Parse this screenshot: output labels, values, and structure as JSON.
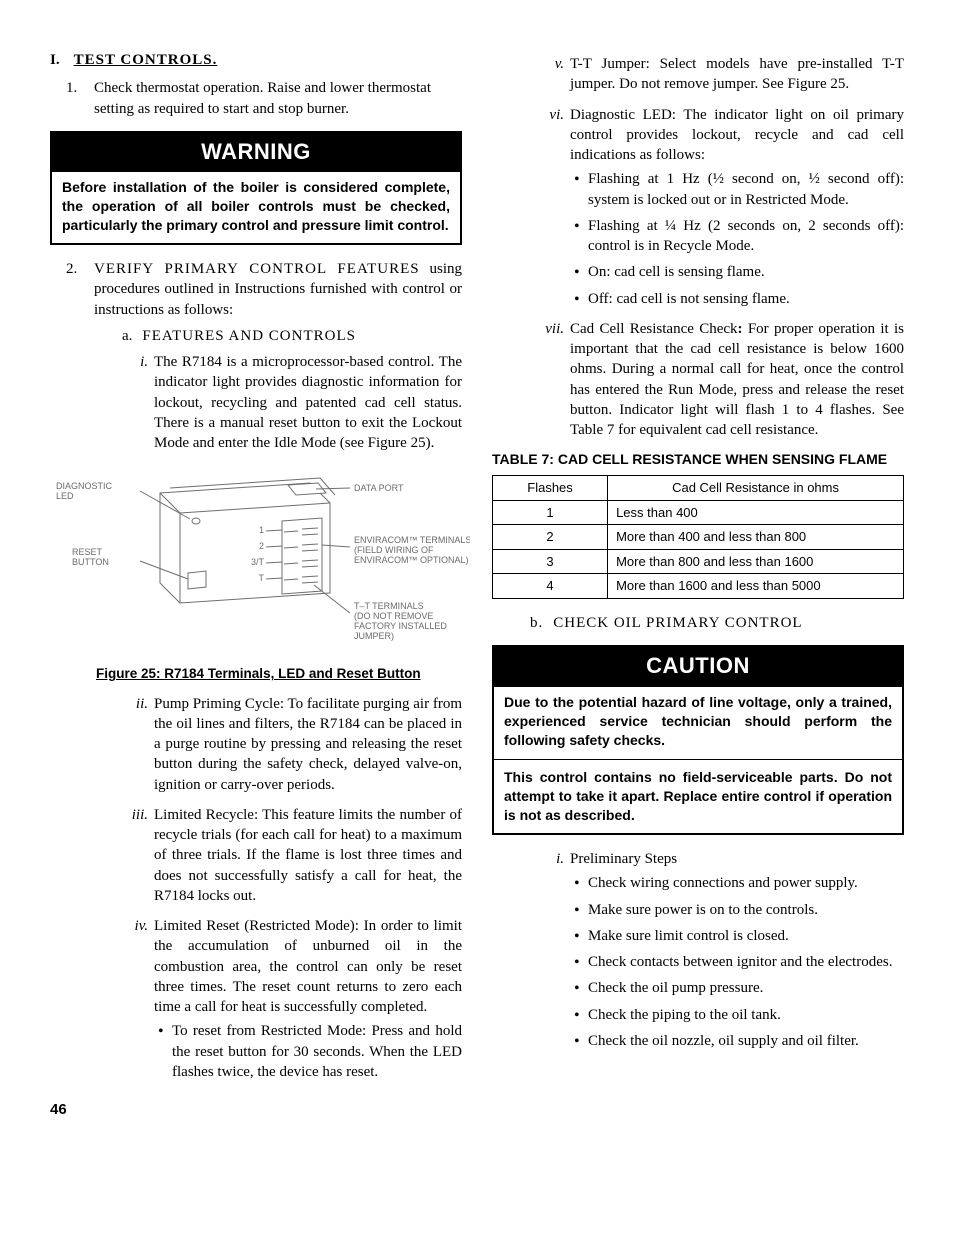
{
  "section": {
    "letter": "I.",
    "title": "TEST  CONTROLS."
  },
  "list1": [
    {
      "num": "1",
      "text": "Check thermostat operation. Raise and lower thermostat setting as required to start and stop burner."
    }
  ],
  "warning": {
    "header": "WARNING",
    "body": "Before installation of the boiler is considered complete, the operation of all boiler controls must be checked, particularly the primary control and pressure limit control."
  },
  "list2_intro": {
    "num": "2",
    "lead": "VERIFY  PRIMARY  CONTROL  FEATURES",
    "rest": " using procedures outlined in Instructions furnished with control or instructions as follows:"
  },
  "sub_a": {
    "label": "a.",
    "title": "FEATURES  AND  CONTROLS"
  },
  "roman_left": [
    {
      "rn": "i",
      "text": "The R7184 is a microprocessor-based control.  The indicator light provides diagnostic information for lockout, recycling and patented cad cell status.   There is a manual reset button to exit the Lockout Mode and enter the Idle Mode (see Figure 25)."
    }
  ],
  "figure": {
    "caption": "Figure 25:  R7184 Terminals, LED and Reset Button",
    "labels": {
      "diag": "DIAGNOSTIC\nLED",
      "reset": "RESET\nBUTTON",
      "data": "DATA  PORT",
      "env": "ENVIRACOM™ TERMINALS\n(FIELD WIRING OF\nENVIRACOM™ OPTIONAL)",
      "tt": "T–T  TERMINALS\n(DO NOT REMOVE\nFACTORY INSTALLED\nJUMPER)",
      "n1": "1",
      "n2": "2",
      "n3": "3/T",
      "nT": "T"
    },
    "stroke": "#6e6e6e",
    "text_color": "#6b6b6b"
  },
  "roman_left2": [
    {
      "rn": "ii",
      "text": "Pump Priming Cycle:  To facilitate purging air from the oil lines and filters, the R7184 can be placed in a purge routine by pressing and releasing the reset button during the safety check, delayed valve-on, ignition or carry-over periods."
    },
    {
      "rn": "iii",
      "text": "Limited Recycle:  This feature limits the number of recycle trials (for each call for heat) to a maximum of three trials.  If the flame is lost three times and does not successfully satisfy a call for heat, the R7184 locks out."
    },
    {
      "rn": "iv",
      "text": "Limited Reset (Restricted Mode):  In order to limit the accumulation of unburned oil in the combustion area, the control can only be reset three times.  The reset count returns to zero each time a call for heat is successfully completed.",
      "bullets": [
        "To reset from Restricted Mode:  Press and hold the reset button for 30 seconds.  When the LED flashes twice, the device has reset."
      ]
    }
  ],
  "roman_right_top": [
    {
      "rn": "v",
      "text": "T-T Jumper:  Select models have pre-installed T-T jumper.  Do not remove jumper.  See Figure 25."
    },
    {
      "rn": "vi",
      "text": "Diagnostic LED:  The indicator light on oil primary control provides lockout, recycle and cad cell indications as follows:",
      "bullets": [
        "Flashing at 1 Hz (½ second on, ½ second off):  system is locked out or in Restricted Mode.",
        "Flashing at ¼ Hz (2 seconds on, 2 seconds off):  control is in Recycle Mode.",
        "On:  cad cell is sensing flame.",
        "Off:  cad cell is not sensing flame."
      ]
    },
    {
      "rn": "vii",
      "html": "Cad Cell Resistance Check<b>:</b>  For proper operation it is important that the cad cell resistance is below 1600 ohms.  During a normal call for heat, once the control has entered the Run Mode, press and release the reset button.  Indicator light will flash 1 to 4 flashes.  See Table 7 for equivalent cad cell resistance."
    }
  ],
  "table7": {
    "title_num": "TABLE 7:",
    "title_name": "  CAD CELL RESISTANCE WHEN SENSING FLAME",
    "headers": [
      "Flashes",
      "Cad Cell Resistance in ohms"
    ],
    "rows": [
      [
        "1",
        "Less than 400"
      ],
      [
        "2",
        "More than 400 and less than 800"
      ],
      [
        "3",
        "More than 800 and less than 1600"
      ],
      [
        "4",
        "More than 1600 and less than 5000"
      ]
    ],
    "col1_width": "28%"
  },
  "sub_b": {
    "label": "b.",
    "title": "CHECK OIL PRIMARY CONTROL"
  },
  "caution": {
    "header": "CAUTION",
    "body1": "Due to the potential hazard of line voltage, only a trained, experienced service technician should perform the following safety checks.",
    "body2": "This control contains no field-serviceable parts.  Do not attempt to take it apart.  Replace entire control if operation is not as described."
  },
  "roman_right_bottom": [
    {
      "rn": "i",
      "text": "Preliminary Steps",
      "bullets": [
        "Check wiring connections and power supply.",
        "Make sure power is on to the controls.",
        "Make sure limit control is closed.",
        "Check contacts between ignitor and the electrodes.",
        "Check the oil pump pressure.",
        "Check the piping to the oil tank.",
        "Check the oil nozzle, oil supply and oil filter."
      ]
    }
  ],
  "page_number": "46"
}
